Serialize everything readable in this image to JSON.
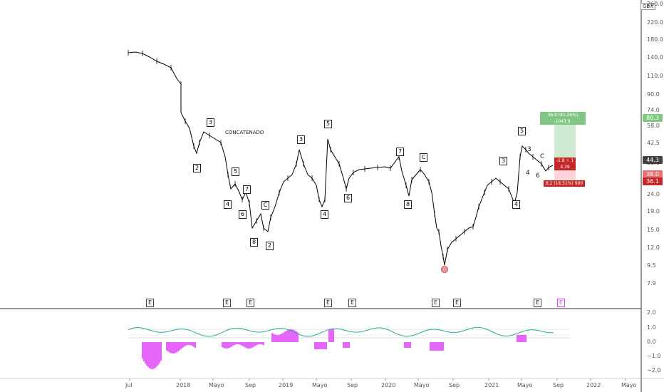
{
  "chart": {
    "currency": "GBX",
    "annotation": "CONCATENADO",
    "y_ticks": [
      "260.0",
      "220.0",
      "180.0",
      "140.0",
      "110.0",
      "90.0",
      "74.0",
      "58.0",
      "42.5",
      "33.0",
      "30.0",
      "24.0",
      "19.0",
      "15.0",
      "12.0",
      "9.5",
      "7.9"
    ],
    "price_tags": [
      {
        "text": "80.3",
        "color": "#81c784"
      },
      {
        "text": "44.3",
        "color": "#424242"
      },
      {
        "text": "38.0",
        "color": "#e57373"
      },
      {
        "text": "36.1",
        "color": "#c62828"
      }
    ],
    "target_label": "36.0 (81.26%) 1043.9",
    "stop_label": "8.2 (18.51%) 990",
    "ratio_label_1": "-1.8 ÷ 1",
    "ratio_label_2": "4.39",
    "waves": [
      {
        "t": "2"
      },
      {
        "t": "3"
      },
      {
        "t": "4"
      },
      {
        "t": "5"
      },
      {
        "t": "6"
      },
      {
        "t": "7"
      },
      {
        "t": "8"
      },
      {
        "t": "C"
      },
      {
        "t": "2"
      },
      {
        "t": "3"
      },
      {
        "t": "4"
      },
      {
        "t": "5"
      },
      {
        "t": "6"
      },
      {
        "t": "7"
      },
      {
        "t": "8"
      },
      {
        "t": "C"
      },
      {
        "t": "3"
      },
      {
        "t": "4"
      },
      {
        "t": "5"
      }
    ],
    "small_waves": [
      "3",
      "4",
      "6",
      "C"
    ],
    "earnings_marker": "E",
    "x_ticks": [
      "Jul",
      "2018",
      "Mayo",
      "Sep",
      "2019",
      "Mayo",
      "Sep",
      "2020",
      "Mayo",
      "Sep",
      "2021",
      "Mayo",
      "Sep",
      "2022",
      "Mayo"
    ]
  },
  "oscillator": {
    "y_ticks": [
      "2.0",
      "1.0",
      "0.0",
      "−1.0",
      "−2.0"
    ]
  },
  "colors": {
    "up": "#26a69a",
    "down": "#ef5350",
    "target": "#c8e6c9",
    "stop": "#ffcdd2",
    "histogram": "#e040fb",
    "osc_up": "#ab47bc",
    "osc_signal": "#26a69a"
  }
}
